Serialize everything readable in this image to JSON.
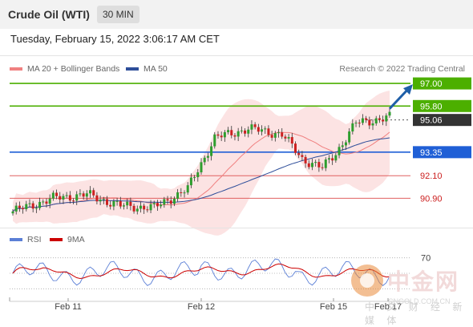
{
  "header": {
    "title": "Crude Oil (WTI)",
    "timeframe": "30 MIN"
  },
  "datetime": "Tuesday, February 15, 2022 3:06:17 AM CET",
  "legend": {
    "ma20": {
      "label": "MA 20 + Bollinger Bands",
      "color": "#f08080"
    },
    "ma50": {
      "label": "MA 50",
      "color": "#2e4e9a"
    }
  },
  "credit": "Research © 2022 Trading Central",
  "rsi_legend": {
    "rsi": {
      "label": "RSI",
      "color": "#5b7fd6"
    },
    "ma9": {
      "label": "9MA",
      "color": "#cc0000"
    }
  },
  "watermark": {
    "text": "中金网",
    "sub": "CNGOLD.COM.CN",
    "sub2": "中 文 财 经 新 媒 体"
  },
  "chart_data": {
    "type": "candlestick",
    "ylim": [
      89.3,
      97.6
    ],
    "levels": [
      {
        "value": 97.0,
        "label": "97.00",
        "kind": "target",
        "color": "#4caf00"
      },
      {
        "value": 95.8,
        "label": "95.80",
        "kind": "resistance",
        "color": "#4caf00"
      },
      {
        "value": 95.06,
        "label": "95.06",
        "kind": "last",
        "color": "#333333"
      },
      {
        "value": 93.35,
        "label": "93.35",
        "kind": "pivot",
        "color": "#1f5fd6"
      },
      {
        "value": 92.1,
        "label": "92.10",
        "kind": "support",
        "color": "#e06060"
      },
      {
        "value": 90.9,
        "label": "90.90",
        "kind": "support",
        "color": "#e06060"
      }
    ],
    "x_ticks": [
      "Feb 11",
      "Feb 12",
      "Feb 15",
      "Feb 17"
    ],
    "rsi_ticks": [
      "70"
    ],
    "arrow_target": 97.0
  }
}
